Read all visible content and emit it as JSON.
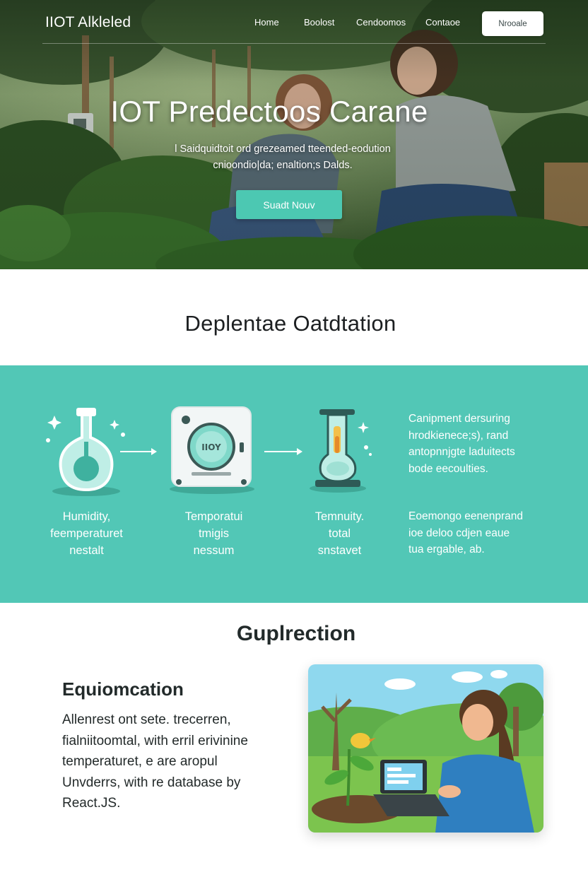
{
  "nav": {
    "logo": "IIOT Alkleled",
    "links": [
      "Home",
      "Boolost",
      "Cendoomos",
      "Contaoe"
    ],
    "cta": "Nrooale"
  },
  "hero": {
    "title": "IOT Predectoos Carane",
    "subtitle_line1": "l Saidquidtoit ord grezeamed tteended-eodution",
    "subtitle_line2": "cnioondio|da; enaltion;s Dalds.",
    "button": "Suadt Nouv"
  },
  "section1": {
    "title": "Deplentae Oatdtation",
    "features": [
      {
        "icon": "flask-icon",
        "label": [
          "Humidity,",
          "feemperaturet",
          "nestalt"
        ]
      },
      {
        "icon": "sensor-device-icon",
        "device_text": "IIOY",
        "label": [
          "Temporatui",
          "tmigis",
          "nessum"
        ]
      },
      {
        "icon": "beaker-icon",
        "label": [
          "Temnuity.",
          "total",
          "snstavet"
        ]
      }
    ],
    "side_text_top": [
      "Canipment dersuring",
      "hrodkienece;s), rand",
      "antopnnjgte laduitects",
      "bode eecoulties."
    ],
    "side_text_bottom": [
      "Eoemongo eenenprand",
      "ioe deloo cdjen eaue",
      "tua ergable, ab."
    ]
  },
  "section2": {
    "title": "Guplrection",
    "heading": "Equiomcation",
    "body": [
      "Allenrest ont sete. trecerren,",
      "fialniitoomtal, with erril erivinine",
      "temperaturet, e are aropul",
      "Unvderrs, with re database by",
      "React.JS."
    ]
  },
  "colors": {
    "accent": "#52c7b6",
    "button": "#4cc8b2",
    "text_dark": "#1c1f21"
  }
}
